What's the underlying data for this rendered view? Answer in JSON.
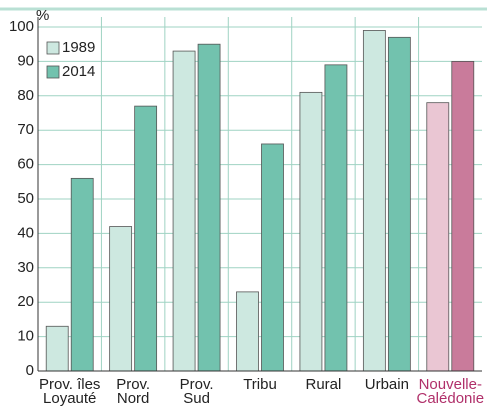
{
  "chart_data": {
    "type": "bar",
    "y_unit": "%",
    "categories": [
      [
        "Prov. îles",
        "Loyauté"
      ],
      [
        "Prov.",
        "Nord"
      ],
      [
        "Prov.",
        "Sud"
      ],
      [
        "Tribu"
      ],
      [
        "Rural"
      ],
      [
        "Urbain"
      ],
      [
        "Nouvelle-",
        "Calédonie"
      ]
    ],
    "category_label_colors": [
      "#222222",
      "#222222",
      "#222222",
      "#222222",
      "#222222",
      "#222222",
      "#b0306a"
    ],
    "series": [
      {
        "name": "1989",
        "color": "#cde8e0",
        "colors": [
          "#cde8e0",
          "#cde8e0",
          "#cde8e0",
          "#cde8e0",
          "#cde8e0",
          "#cde8e0",
          "#eac6d3"
        ],
        "values": [
          13,
          42,
          93,
          23,
          81,
          99,
          78
        ]
      },
      {
        "name": "2014",
        "color": "#72c2ae",
        "colors": [
          "#72c2ae",
          "#72c2ae",
          "#72c2ae",
          "#72c2ae",
          "#72c2ae",
          "#72c2ae",
          "#c97b9b"
        ],
        "values": [
          56,
          77,
          95,
          66,
          89,
          97,
          90
        ]
      }
    ],
    "ylim": [
      0,
      100
    ],
    "yticks": [
      0,
      10,
      20,
      30,
      40,
      50,
      60,
      70,
      80,
      90,
      100
    ],
    "grid": true,
    "legend": "top-left"
  }
}
